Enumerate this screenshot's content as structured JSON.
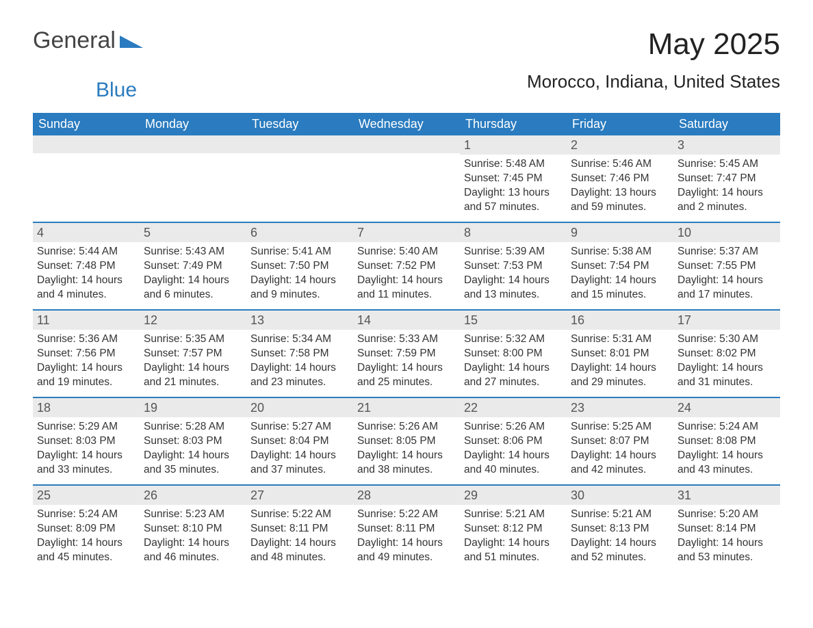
{
  "logo": {
    "text1": "General",
    "text2": "Blue",
    "mark_color": "#2a7bbf"
  },
  "title": "May 2025",
  "location": "Morocco, Indiana, United States",
  "colors": {
    "header_bg": "#2a7bbf",
    "header_text": "#ffffff",
    "daynum_bg": "#eaeaea",
    "daynum_text": "#555555",
    "body_text": "#333333",
    "rule": "#2a7bbf"
  },
  "day_headers": [
    "Sunday",
    "Monday",
    "Tuesday",
    "Wednesday",
    "Thursday",
    "Friday",
    "Saturday"
  ],
  "weeks": [
    [
      {
        "day": "",
        "sunrise": "",
        "sunset": "",
        "daylight": ""
      },
      {
        "day": "",
        "sunrise": "",
        "sunset": "",
        "daylight": ""
      },
      {
        "day": "",
        "sunrise": "",
        "sunset": "",
        "daylight": ""
      },
      {
        "day": "",
        "sunrise": "",
        "sunset": "",
        "daylight": ""
      },
      {
        "day": "1",
        "sunrise": "Sunrise: 5:48 AM",
        "sunset": "Sunset: 7:45 PM",
        "daylight": "Daylight: 13 hours and 57 minutes."
      },
      {
        "day": "2",
        "sunrise": "Sunrise: 5:46 AM",
        "sunset": "Sunset: 7:46 PM",
        "daylight": "Daylight: 13 hours and 59 minutes."
      },
      {
        "day": "3",
        "sunrise": "Sunrise: 5:45 AM",
        "sunset": "Sunset: 7:47 PM",
        "daylight": "Daylight: 14 hours and 2 minutes."
      }
    ],
    [
      {
        "day": "4",
        "sunrise": "Sunrise: 5:44 AM",
        "sunset": "Sunset: 7:48 PM",
        "daylight": "Daylight: 14 hours and 4 minutes."
      },
      {
        "day": "5",
        "sunrise": "Sunrise: 5:43 AM",
        "sunset": "Sunset: 7:49 PM",
        "daylight": "Daylight: 14 hours and 6 minutes."
      },
      {
        "day": "6",
        "sunrise": "Sunrise: 5:41 AM",
        "sunset": "Sunset: 7:50 PM",
        "daylight": "Daylight: 14 hours and 9 minutes."
      },
      {
        "day": "7",
        "sunrise": "Sunrise: 5:40 AM",
        "sunset": "Sunset: 7:52 PM",
        "daylight": "Daylight: 14 hours and 11 minutes."
      },
      {
        "day": "8",
        "sunrise": "Sunrise: 5:39 AM",
        "sunset": "Sunset: 7:53 PM",
        "daylight": "Daylight: 14 hours and 13 minutes."
      },
      {
        "day": "9",
        "sunrise": "Sunrise: 5:38 AM",
        "sunset": "Sunset: 7:54 PM",
        "daylight": "Daylight: 14 hours and 15 minutes."
      },
      {
        "day": "10",
        "sunrise": "Sunrise: 5:37 AM",
        "sunset": "Sunset: 7:55 PM",
        "daylight": "Daylight: 14 hours and 17 minutes."
      }
    ],
    [
      {
        "day": "11",
        "sunrise": "Sunrise: 5:36 AM",
        "sunset": "Sunset: 7:56 PM",
        "daylight": "Daylight: 14 hours and 19 minutes."
      },
      {
        "day": "12",
        "sunrise": "Sunrise: 5:35 AM",
        "sunset": "Sunset: 7:57 PM",
        "daylight": "Daylight: 14 hours and 21 minutes."
      },
      {
        "day": "13",
        "sunrise": "Sunrise: 5:34 AM",
        "sunset": "Sunset: 7:58 PM",
        "daylight": "Daylight: 14 hours and 23 minutes."
      },
      {
        "day": "14",
        "sunrise": "Sunrise: 5:33 AM",
        "sunset": "Sunset: 7:59 PM",
        "daylight": "Daylight: 14 hours and 25 minutes."
      },
      {
        "day": "15",
        "sunrise": "Sunrise: 5:32 AM",
        "sunset": "Sunset: 8:00 PM",
        "daylight": "Daylight: 14 hours and 27 minutes."
      },
      {
        "day": "16",
        "sunrise": "Sunrise: 5:31 AM",
        "sunset": "Sunset: 8:01 PM",
        "daylight": "Daylight: 14 hours and 29 minutes."
      },
      {
        "day": "17",
        "sunrise": "Sunrise: 5:30 AM",
        "sunset": "Sunset: 8:02 PM",
        "daylight": "Daylight: 14 hours and 31 minutes."
      }
    ],
    [
      {
        "day": "18",
        "sunrise": "Sunrise: 5:29 AM",
        "sunset": "Sunset: 8:03 PM",
        "daylight": "Daylight: 14 hours and 33 minutes."
      },
      {
        "day": "19",
        "sunrise": "Sunrise: 5:28 AM",
        "sunset": "Sunset: 8:03 PM",
        "daylight": "Daylight: 14 hours and 35 minutes."
      },
      {
        "day": "20",
        "sunrise": "Sunrise: 5:27 AM",
        "sunset": "Sunset: 8:04 PM",
        "daylight": "Daylight: 14 hours and 37 minutes."
      },
      {
        "day": "21",
        "sunrise": "Sunrise: 5:26 AM",
        "sunset": "Sunset: 8:05 PM",
        "daylight": "Daylight: 14 hours and 38 minutes."
      },
      {
        "day": "22",
        "sunrise": "Sunrise: 5:26 AM",
        "sunset": "Sunset: 8:06 PM",
        "daylight": "Daylight: 14 hours and 40 minutes."
      },
      {
        "day": "23",
        "sunrise": "Sunrise: 5:25 AM",
        "sunset": "Sunset: 8:07 PM",
        "daylight": "Daylight: 14 hours and 42 minutes."
      },
      {
        "day": "24",
        "sunrise": "Sunrise: 5:24 AM",
        "sunset": "Sunset: 8:08 PM",
        "daylight": "Daylight: 14 hours and 43 minutes."
      }
    ],
    [
      {
        "day": "25",
        "sunrise": "Sunrise: 5:24 AM",
        "sunset": "Sunset: 8:09 PM",
        "daylight": "Daylight: 14 hours and 45 minutes."
      },
      {
        "day": "26",
        "sunrise": "Sunrise: 5:23 AM",
        "sunset": "Sunset: 8:10 PM",
        "daylight": "Daylight: 14 hours and 46 minutes."
      },
      {
        "day": "27",
        "sunrise": "Sunrise: 5:22 AM",
        "sunset": "Sunset: 8:11 PM",
        "daylight": "Daylight: 14 hours and 48 minutes."
      },
      {
        "day": "28",
        "sunrise": "Sunrise: 5:22 AM",
        "sunset": "Sunset: 8:11 PM",
        "daylight": "Daylight: 14 hours and 49 minutes."
      },
      {
        "day": "29",
        "sunrise": "Sunrise: 5:21 AM",
        "sunset": "Sunset: 8:12 PM",
        "daylight": "Daylight: 14 hours and 51 minutes."
      },
      {
        "day": "30",
        "sunrise": "Sunrise: 5:21 AM",
        "sunset": "Sunset: 8:13 PM",
        "daylight": "Daylight: 14 hours and 52 minutes."
      },
      {
        "day": "31",
        "sunrise": "Sunrise: 5:20 AM",
        "sunset": "Sunset: 8:14 PM",
        "daylight": "Daylight: 14 hours and 53 minutes."
      }
    ]
  ]
}
